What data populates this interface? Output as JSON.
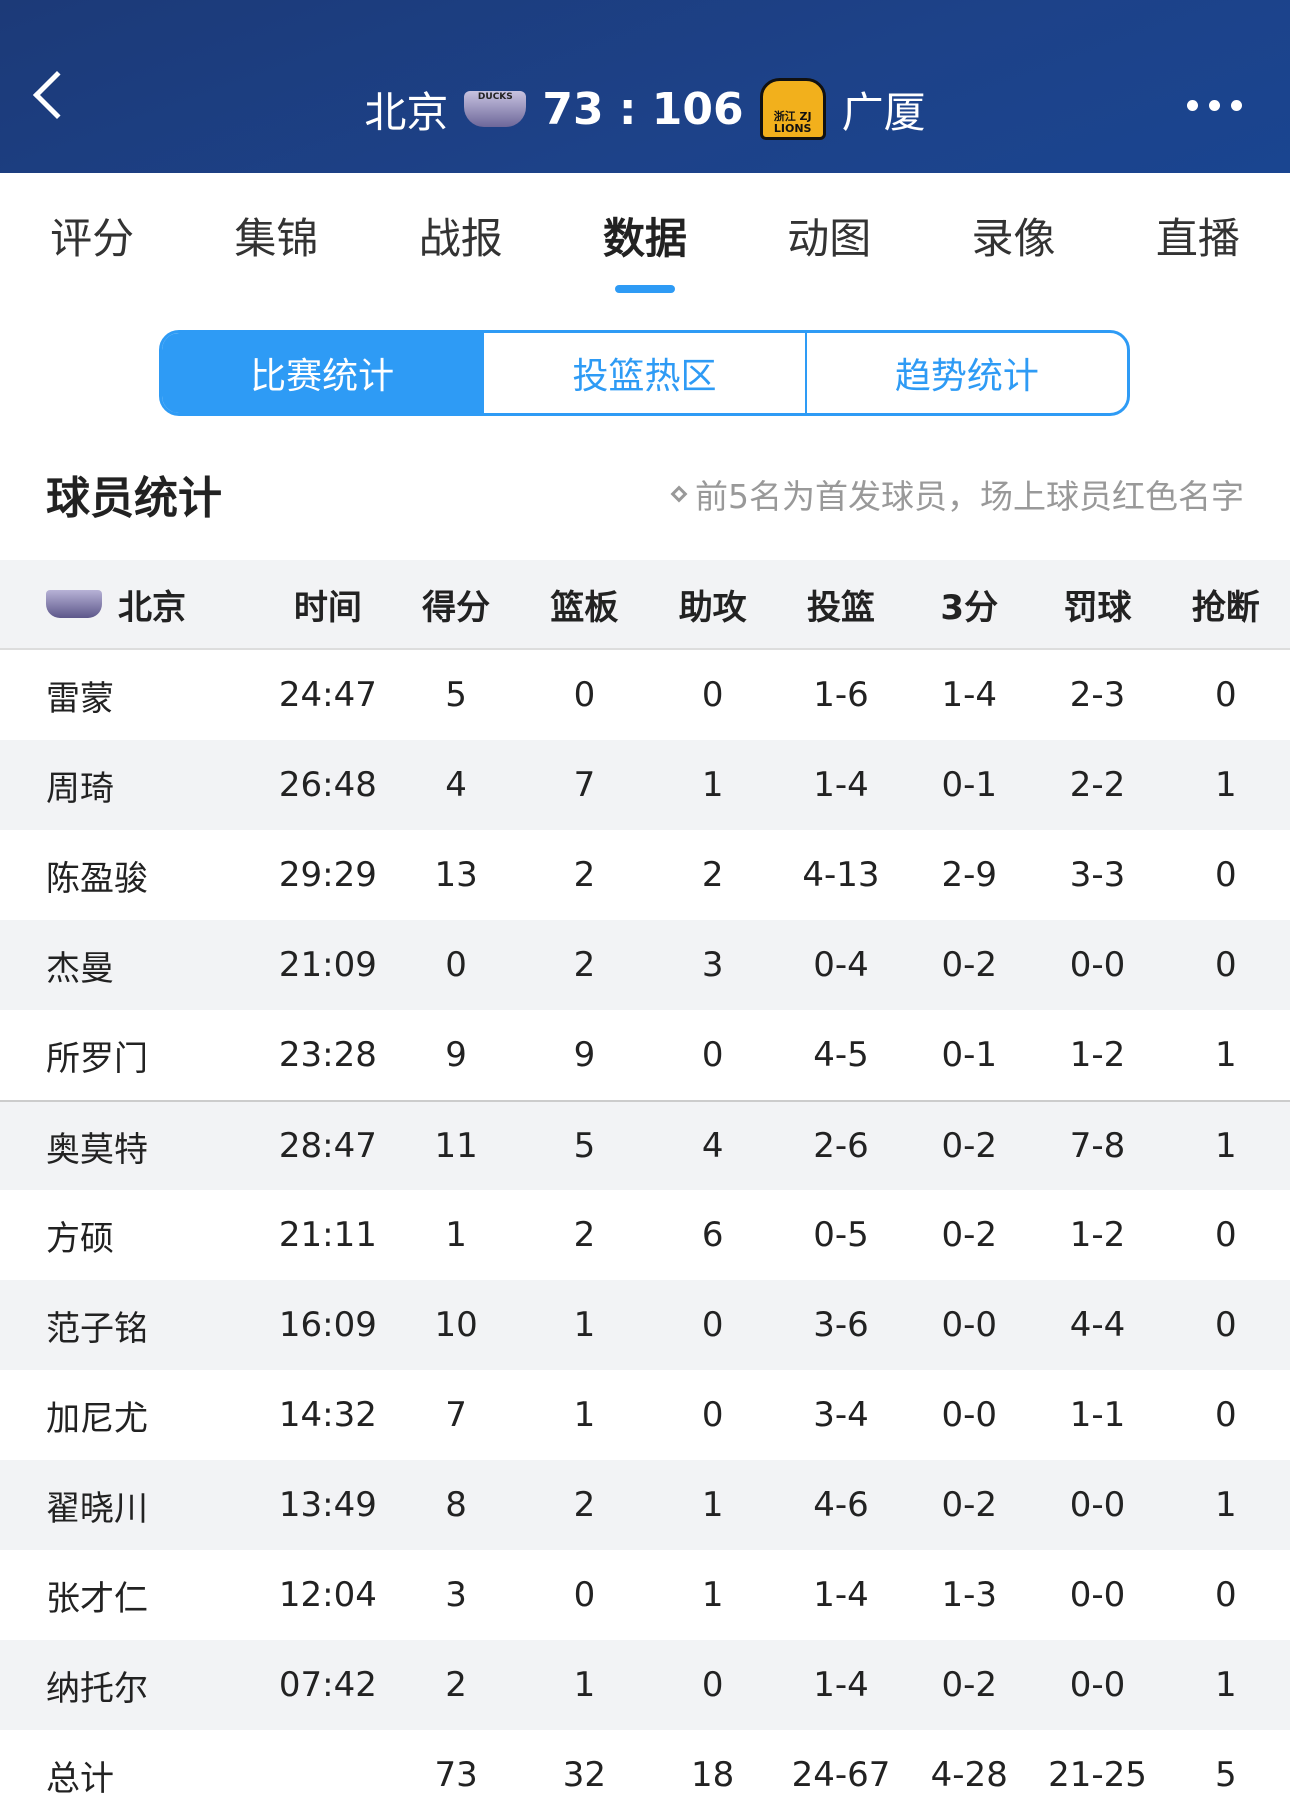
{
  "header": {
    "home": "北京",
    "score": "73 : 106",
    "away": "广厦",
    "home_logo_text": "DUCKS",
    "away_logo_text": "浙江 ZJ LIONS"
  },
  "tabs": [
    "评分",
    "集锦",
    "战报",
    "数据",
    "动图",
    "录像",
    "直播"
  ],
  "active_tab": "数据",
  "segments": [
    "比赛统计",
    "投篮热区",
    "趋势统计"
  ],
  "section": {
    "title": "球员统计",
    "note": "前5名为首发球员，场上球员红色名字"
  },
  "accent": "#2e9bf5",
  "table": {
    "team": "北京",
    "columns": [
      "时间",
      "得分",
      "篮板",
      "助攻",
      "投篮",
      "3分",
      "罚球",
      "抢断"
    ],
    "rows": [
      [
        "雷蒙",
        "24:47",
        "5",
        "0",
        "0",
        "1-6",
        "1-4",
        "2-3",
        "0"
      ],
      [
        "周琦",
        "26:48",
        "4",
        "7",
        "1",
        "1-4",
        "0-1",
        "2-2",
        "1"
      ],
      [
        "陈盈骏",
        "29:29",
        "13",
        "2",
        "2",
        "4-13",
        "2-9",
        "3-3",
        "0"
      ],
      [
        "杰曼",
        "21:09",
        "0",
        "2",
        "3",
        "0-4",
        "0-2",
        "0-0",
        "0"
      ],
      [
        "所罗门",
        "23:28",
        "9",
        "9",
        "0",
        "4-5",
        "0-1",
        "1-2",
        "1"
      ],
      [
        "奥莫特",
        "28:47",
        "11",
        "5",
        "4",
        "2-6",
        "0-2",
        "7-8",
        "1"
      ],
      [
        "方硕",
        "21:11",
        "1",
        "2",
        "6",
        "0-5",
        "0-2",
        "1-2",
        "0"
      ],
      [
        "范子铭",
        "16:09",
        "10",
        "1",
        "0",
        "3-6",
        "0-0",
        "4-4",
        "0"
      ],
      [
        "加尼尤",
        "14:32",
        "7",
        "1",
        "0",
        "3-4",
        "0-0",
        "1-1",
        "0"
      ],
      [
        "翟晓川",
        "13:49",
        "8",
        "2",
        "1",
        "4-6",
        "0-2",
        "0-0",
        "1"
      ],
      [
        "张才仁",
        "12:04",
        "3",
        "0",
        "1",
        "1-4",
        "1-3",
        "0-0",
        "0"
      ],
      [
        "纳托尔",
        "07:42",
        "2",
        "1",
        "0",
        "1-4",
        "0-2",
        "0-0",
        "1"
      ]
    ],
    "total": [
      "总计",
      "",
      "73",
      "32",
      "18",
      "24-67",
      "4-28",
      "21-25",
      "5"
    ]
  }
}
